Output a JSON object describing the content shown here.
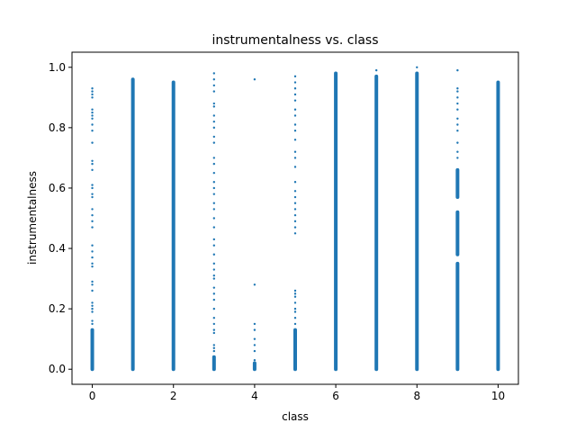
{
  "chart_data": {
    "type": "scatter",
    "title": "instrumentalness vs. class",
    "xlabel": "class",
    "ylabel": "instrumentalness",
    "xlim": [
      -0.5,
      10.5
    ],
    "ylim": [
      -0.05,
      1.05
    ],
    "xticks": [
      0,
      2,
      4,
      6,
      8,
      10
    ],
    "xtick_labels": [
      "0",
      "2",
      "4",
      "6",
      "8",
      "10"
    ],
    "yticks": [
      0.0,
      0.2,
      0.4,
      0.6,
      0.8,
      1.0
    ],
    "ytick_labels": [
      "0.0",
      "0.2",
      "0.4",
      "0.6",
      "0.8",
      "1.0"
    ],
    "grid": false,
    "marker_color": "#1f77b4",
    "classes": [
      {
        "x": 0,
        "ranges": [
          [
            0.0,
            0.13
          ]
        ],
        "points": [
          0.15,
          0.16,
          0.19,
          0.2,
          0.21,
          0.22,
          0.26,
          0.28,
          0.29,
          0.34,
          0.35,
          0.37,
          0.39,
          0.41,
          0.47,
          0.49,
          0.51,
          0.53,
          0.57,
          0.58,
          0.6,
          0.61,
          0.66,
          0.68,
          0.69,
          0.75,
          0.79,
          0.81,
          0.83,
          0.84,
          0.85,
          0.86,
          0.9,
          0.91,
          0.92,
          0.93
        ]
      },
      {
        "x": 1,
        "ranges": [
          [
            0.0,
            0.96
          ]
        ],
        "points": []
      },
      {
        "x": 2,
        "ranges": [
          [
            0.0,
            0.95
          ]
        ],
        "points": []
      },
      {
        "x": 3,
        "ranges": [
          [
            0.0,
            0.04
          ]
        ],
        "points": [
          0.06,
          0.07,
          0.08,
          0.12,
          0.13,
          0.15,
          0.17,
          0.2,
          0.23,
          0.25,
          0.27,
          0.3,
          0.31,
          0.33,
          0.35,
          0.38,
          0.41,
          0.43,
          0.47,
          0.5,
          0.53,
          0.55,
          0.58,
          0.6,
          0.62,
          0.65,
          0.68,
          0.7,
          0.75,
          0.77,
          0.8,
          0.82,
          0.84,
          0.87,
          0.88,
          0.92,
          0.94,
          0.96,
          0.98
        ]
      },
      {
        "x": 4,
        "ranges": [
          [
            0.0,
            0.02
          ]
        ],
        "points": [
          0.03,
          0.06,
          0.08,
          0.1,
          0.13,
          0.15,
          0.28,
          0.96
        ]
      },
      {
        "x": 5,
        "ranges": [
          [
            0.0,
            0.13
          ]
        ],
        "points": [
          0.15,
          0.17,
          0.19,
          0.2,
          0.22,
          0.24,
          0.25,
          0.26,
          0.45,
          0.47,
          0.49,
          0.51,
          0.53,
          0.55,
          0.57,
          0.59,
          0.62,
          0.67,
          0.7,
          0.72,
          0.76,
          0.79,
          0.81,
          0.84,
          0.86,
          0.89,
          0.91,
          0.93,
          0.95,
          0.97
        ]
      },
      {
        "x": 6,
        "ranges": [
          [
            0.0,
            0.98
          ]
        ],
        "points": []
      },
      {
        "x": 7,
        "ranges": [
          [
            0.0,
            0.97
          ]
        ],
        "points": [
          0.99
        ]
      },
      {
        "x": 8,
        "ranges": [
          [
            0.0,
            0.98
          ]
        ],
        "points": [
          1.0
        ]
      },
      {
        "x": 9,
        "ranges": [
          [
            0.0,
            0.35
          ],
          [
            0.38,
            0.52
          ],
          [
            0.57,
            0.66
          ]
        ],
        "points": [
          0.7,
          0.72,
          0.75,
          0.79,
          0.81,
          0.83,
          0.86,
          0.88,
          0.9,
          0.92,
          0.93,
          0.99
        ]
      },
      {
        "x": 10,
        "ranges": [
          [
            0.0,
            0.95
          ]
        ],
        "points": []
      }
    ]
  }
}
